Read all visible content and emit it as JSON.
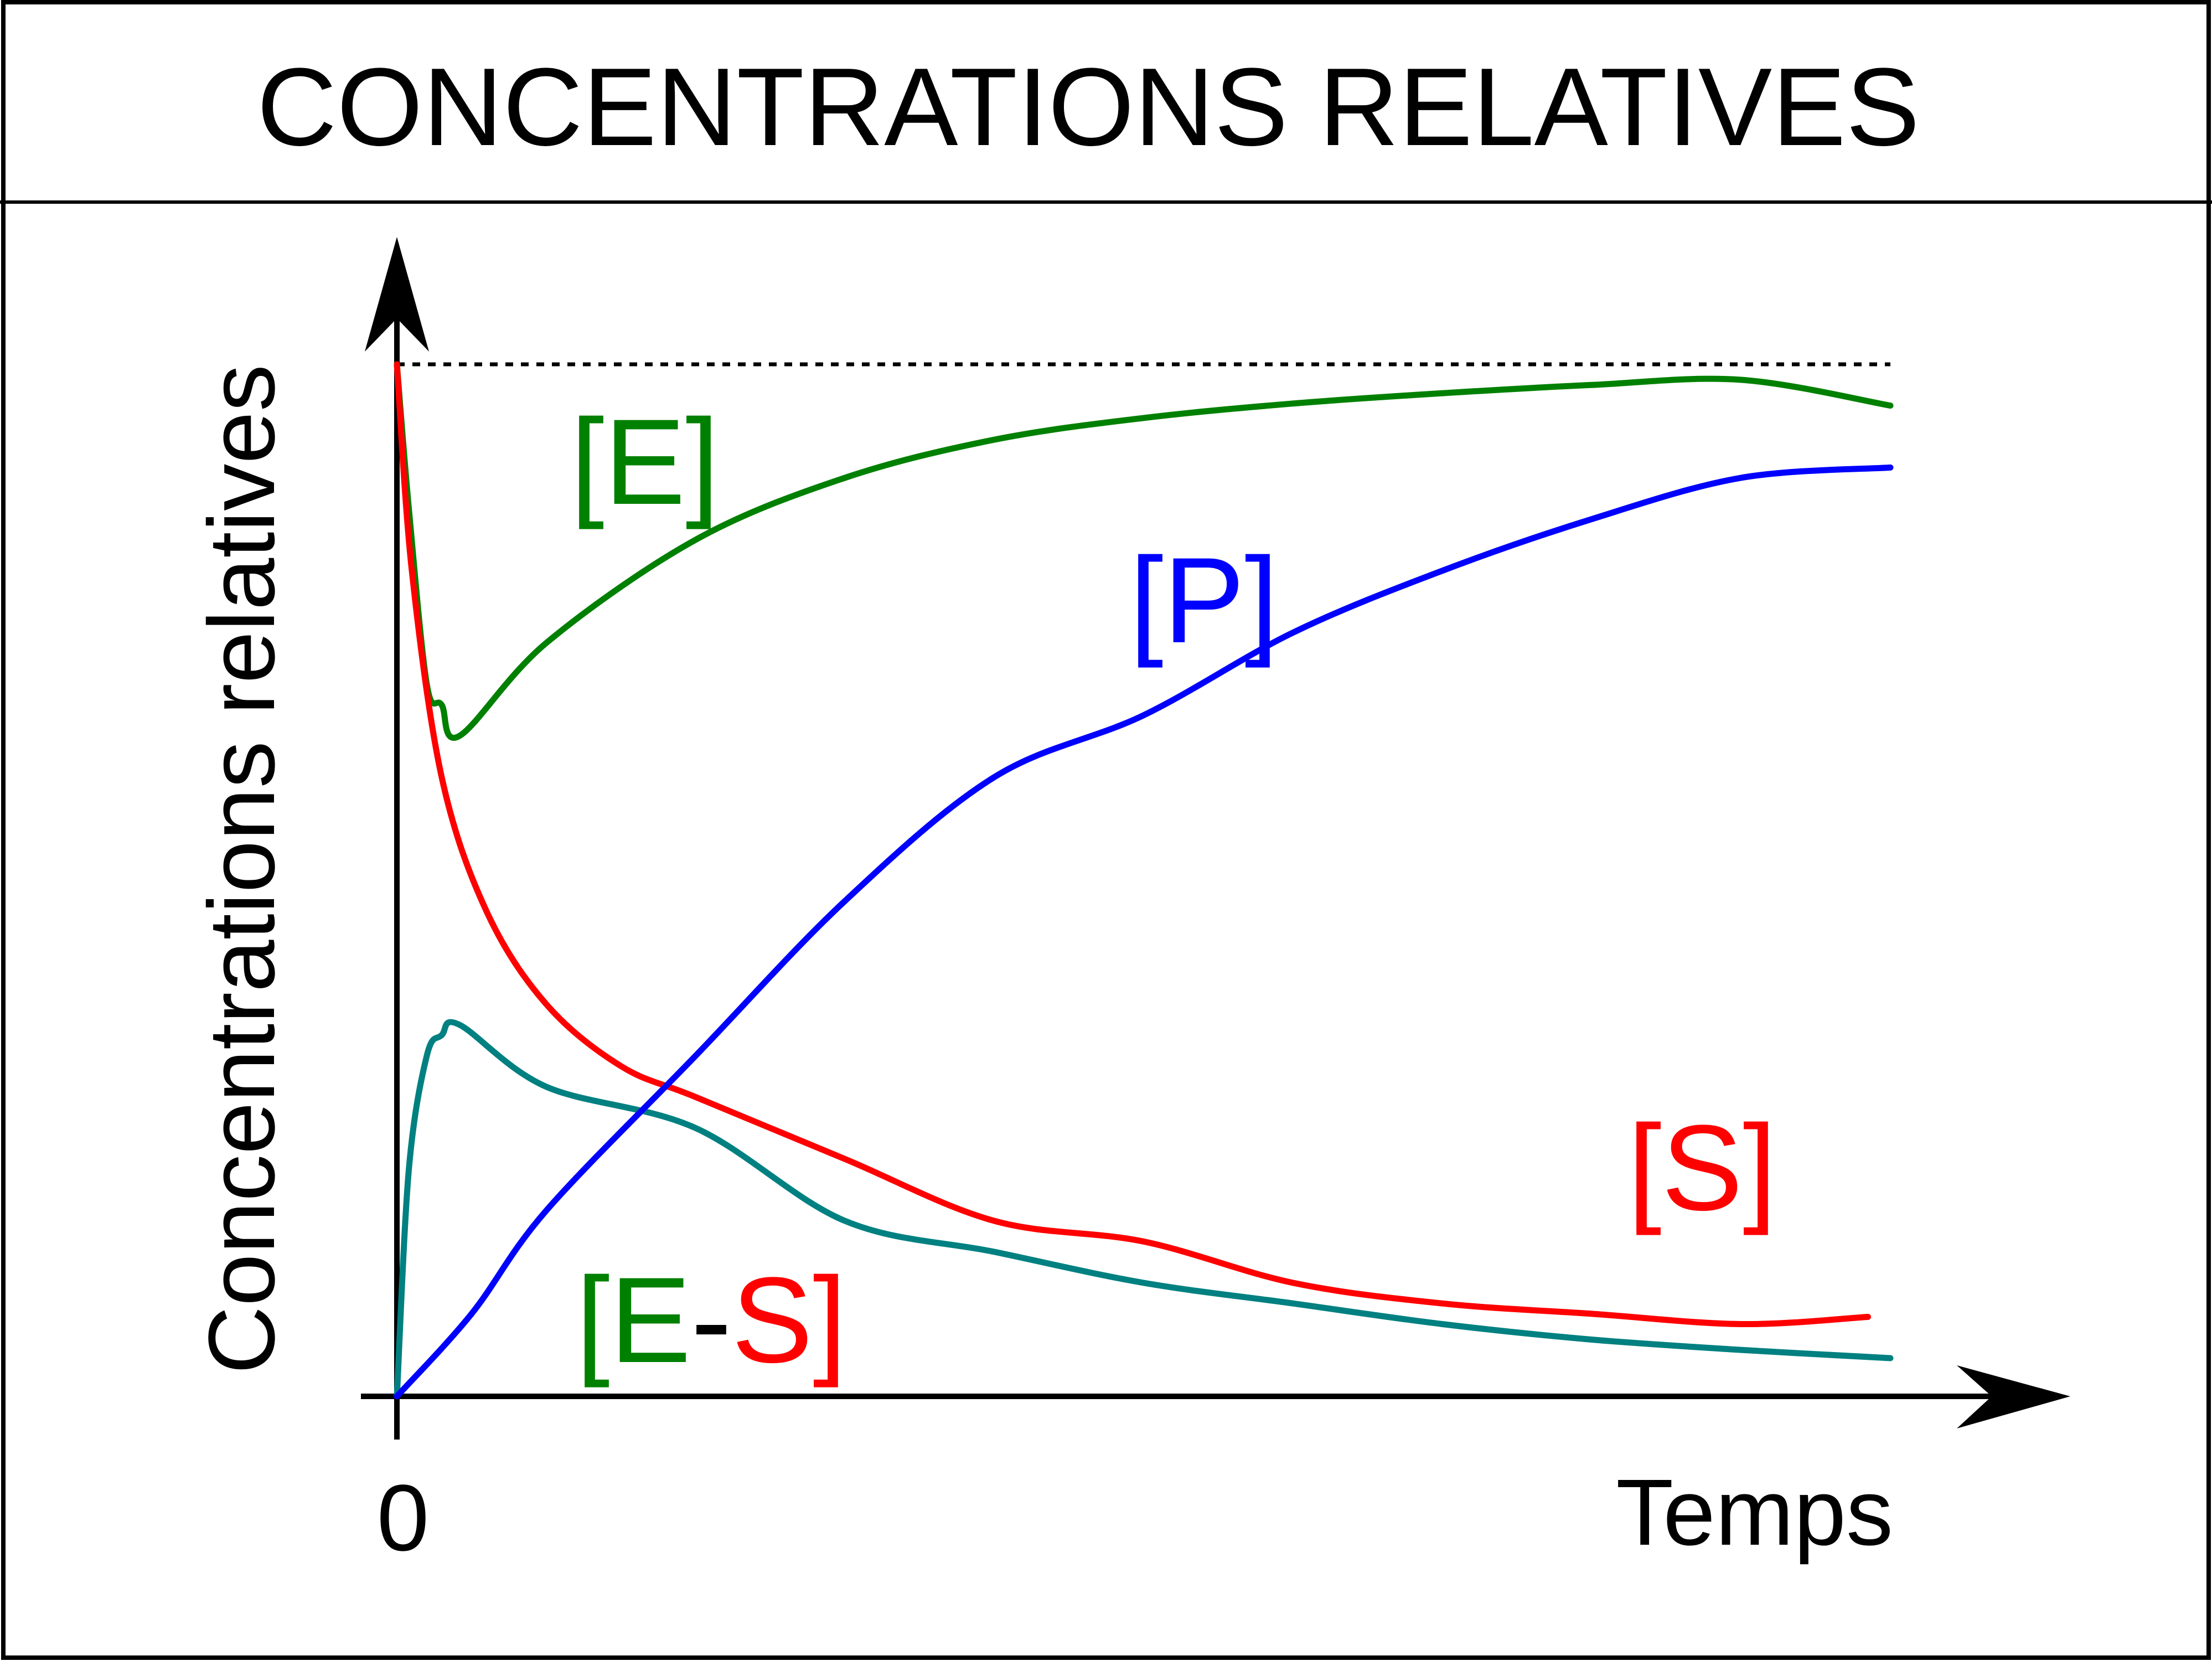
{
  "chart_data": {
    "type": "line",
    "title": "CONCENTRATIONS RELATIVES",
    "xlabel": "Temps",
    "ylabel": "Concentrations relatives",
    "x_tick_labels": [
      "0"
    ],
    "xlim": [
      0,
      1
    ],
    "ylim": [
      0,
      1
    ],
    "grid": false,
    "legend": "inline labels",
    "reference_line": {
      "y": 1.0,
      "style": "dashed",
      "color": "#000000"
    },
    "series": [
      {
        "name": "[E]",
        "color": "#008000",
        "points": [
          [
            0,
            1.0
          ],
          [
            0.008,
            0.86
          ],
          [
            0.02,
            0.69
          ],
          [
            0.03,
            0.67
          ],
          [
            0.042,
            0.64
          ],
          [
            0.1,
            0.73
          ],
          [
            0.2,
            0.83
          ],
          [
            0.3,
            0.89
          ],
          [
            0.4,
            0.927
          ],
          [
            0.5,
            0.948
          ],
          [
            0.6,
            0.962
          ],
          [
            0.7,
            0.972
          ],
          [
            0.8,
            0.98
          ],
          [
            0.9,
            0.985
          ],
          [
            1.0,
            0.96
          ]
        ]
      },
      {
        "name": "[P]",
        "color": "#0000ff",
        "points": [
          [
            0,
            0.0
          ],
          [
            0.05,
            0.08
          ],
          [
            0.1,
            0.18
          ],
          [
            0.2,
            0.33
          ],
          [
            0.3,
            0.48
          ],
          [
            0.4,
            0.6
          ],
          [
            0.5,
            0.66
          ],
          [
            0.6,
            0.74
          ],
          [
            0.7,
            0.8
          ],
          [
            0.8,
            0.85
          ],
          [
            0.9,
            0.89
          ],
          [
            1.0,
            0.9
          ]
        ]
      },
      {
        "name": "[S]",
        "color": "#ff0000",
        "points": [
          [
            0,
            1.0
          ],
          [
            0.01,
            0.8
          ],
          [
            0.03,
            0.6
          ],
          [
            0.06,
            0.47
          ],
          [
            0.1,
            0.38
          ],
          [
            0.15,
            0.32
          ],
          [
            0.2,
            0.29
          ],
          [
            0.3,
            0.23
          ],
          [
            0.4,
            0.17
          ],
          [
            0.5,
            0.15
          ],
          [
            0.6,
            0.11
          ],
          [
            0.7,
            0.09
          ],
          [
            0.8,
            0.08
          ],
          [
            0.9,
            0.07
          ],
          [
            0.985,
            0.077
          ]
        ]
      },
      {
        "name": "[E-S]",
        "name_parts": [
          "[",
          "E",
          "-",
          "S",
          "]"
        ],
        "name_colors": [
          "#008000",
          "#008000",
          "#000000",
          "#ff0000",
          "#ff0000"
        ],
        "color": "#008080",
        "points": [
          [
            0,
            0.0
          ],
          [
            0.008,
            0.22
          ],
          [
            0.02,
            0.33
          ],
          [
            0.03,
            0.35
          ],
          [
            0.042,
            0.36
          ],
          [
            0.1,
            0.3
          ],
          [
            0.2,
            0.26
          ],
          [
            0.3,
            0.17
          ],
          [
            0.4,
            0.14
          ],
          [
            0.5,
            0.11
          ],
          [
            0.6,
            0.09
          ],
          [
            0.7,
            0.07
          ],
          [
            0.8,
            0.055
          ],
          [
            0.9,
            0.045
          ],
          [
            1.0,
            0.037
          ]
        ]
      }
    ]
  }
}
